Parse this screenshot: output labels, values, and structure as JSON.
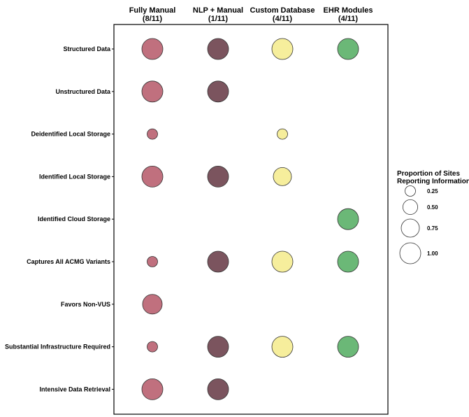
{
  "chart_data": {
    "type": "bubble-matrix",
    "columns": [
      {
        "name": "Fully Manual",
        "count": "(8/11)",
        "color": "#c0707e"
      },
      {
        "name": "NLP + Manual",
        "count": "(1/11)",
        "color": "#7b545e"
      },
      {
        "name": "Custom Database",
        "count": "(4/11)",
        "color": "#f6ee9c"
      },
      {
        "name": "EHR Modules",
        "count": "(4/11)",
        "color": "#6bb877"
      }
    ],
    "rows": [
      {
        "label": "Structured Data",
        "values": [
          1.0,
          1.0,
          1.0,
          1.0
        ]
      },
      {
        "label": "Unstructured Data",
        "values": [
          1.0,
          1.0,
          null,
          null
        ]
      },
      {
        "label": "Deidentified Local Storage",
        "values": [
          0.25,
          null,
          0.25,
          null
        ]
      },
      {
        "label": "Identified Local Storage",
        "values": [
          1.0,
          1.0,
          0.75,
          null
        ]
      },
      {
        "label": "Identified Cloud Storage",
        "values": [
          null,
          null,
          null,
          1.0
        ]
      },
      {
        "label": "Captures All ACMG Variants",
        "values": [
          0.25,
          1.0,
          1.0,
          1.0
        ]
      },
      {
        "label": "Favors Non-VUS",
        "values": [
          0.875,
          null,
          null,
          null
        ]
      },
      {
        "label": "Substantial Infrastructure Required",
        "values": [
          0.25,
          1.0,
          1.0,
          1.0
        ]
      },
      {
        "label": "Intensive Data Retrieval",
        "values": [
          1.0,
          1.0,
          null,
          null
        ]
      }
    ],
    "legend": {
      "title_line1": "Proportion of Sites",
      "title_line2": "Reporting Information",
      "placement": "right",
      "entries": [
        {
          "value": 0.25,
          "label": "0.25"
        },
        {
          "value": 0.5,
          "label": "0.50"
        },
        {
          "value": 0.75,
          "label": "0.75"
        },
        {
          "value": 1.0,
          "label": "1.00"
        }
      ]
    }
  }
}
